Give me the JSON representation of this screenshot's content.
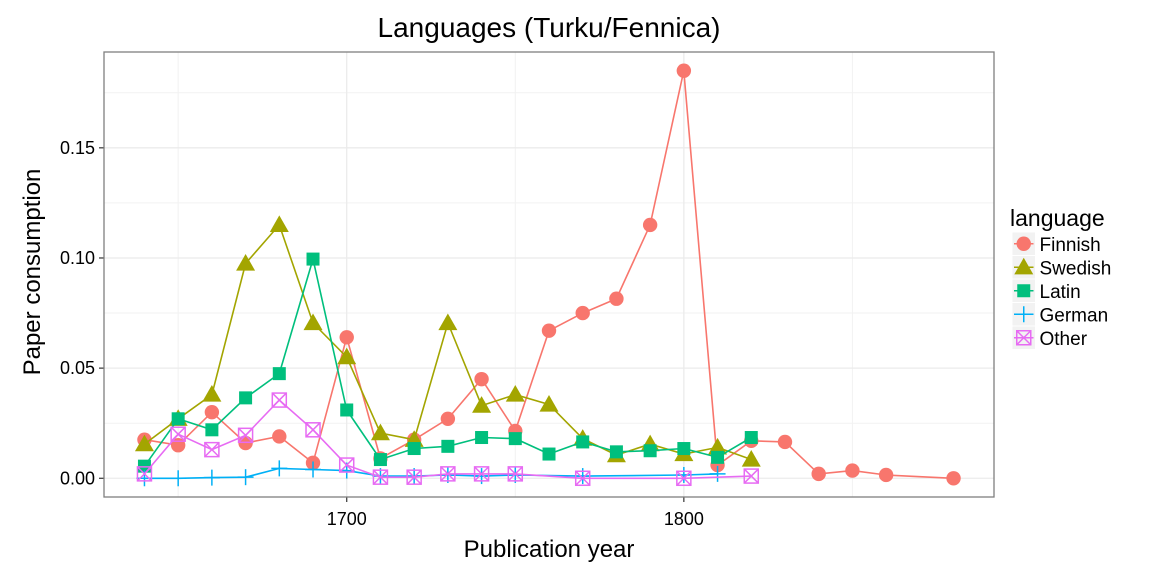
{
  "chart_data": {
    "type": "line",
    "title": "Languages (Turku/Fennica)",
    "xlabel": "Publication year",
    "ylabel": "Paper consumption",
    "xlim": [
      1628,
      1892
    ],
    "ylim": [
      -0.0085,
      0.1935
    ],
    "x_ticks": [
      1700,
      1800
    ],
    "y_ticks": [
      0.0,
      0.05,
      0.1,
      0.15
    ],
    "x_tick_labels": [
      "1700",
      "1800"
    ],
    "y_tick_labels": [
      "0.00",
      "0.05",
      "0.10",
      "0.15"
    ],
    "grid": true,
    "legend": {
      "title": "language",
      "position": "right"
    },
    "series": [
      {
        "name": "Finnish",
        "color": "#F8766D",
        "marker": "circle",
        "x": [
          1640,
          1650,
          1660,
          1670,
          1680,
          1690,
          1700,
          1710,
          1720,
          1730,
          1740,
          1750,
          1760,
          1770,
          1780,
          1790,
          1800,
          1810,
          1820,
          1830,
          1840,
          1850,
          1860,
          1880
        ],
        "values": [
          0.0175,
          0.015,
          0.03,
          0.016,
          0.019,
          0.007,
          0.064,
          0.009,
          0.0175,
          0.027,
          0.045,
          0.0215,
          0.067,
          0.075,
          0.0815,
          0.115,
          0.185,
          0.006,
          0.017,
          0.0165,
          0.002,
          0.0035,
          0.0015,
          0.0
        ]
      },
      {
        "name": "Swedish",
        "color": "#A3A500",
        "marker": "triangle",
        "x": [
          1640,
          1650,
          1660,
          1670,
          1680,
          1690,
          1700,
          1710,
          1720,
          1730,
          1740,
          1750,
          1760,
          1770,
          1780,
          1790,
          1800,
          1810,
          1820
        ],
        "values": [
          0.0155,
          0.027,
          0.038,
          0.0975,
          0.115,
          0.0705,
          0.055,
          0.0205,
          0.0175,
          0.0705,
          0.033,
          0.038,
          0.0335,
          0.018,
          0.0105,
          0.0155,
          0.011,
          0.014,
          0.0085
        ]
      },
      {
        "name": "Latin",
        "color": "#00BF7D",
        "marker": "square",
        "x": [
          1640,
          1650,
          1660,
          1670,
          1680,
          1690,
          1700,
          1710,
          1720,
          1730,
          1740,
          1750,
          1760,
          1770,
          1780,
          1790,
          1800,
          1810,
          1820
        ],
        "values": [
          0.0055,
          0.027,
          0.022,
          0.0365,
          0.0475,
          0.0995,
          0.031,
          0.0085,
          0.0135,
          0.0145,
          0.0185,
          0.018,
          0.011,
          0.0165,
          0.012,
          0.0125,
          0.0135,
          0.0095,
          0.0185
        ]
      },
      {
        "name": "German",
        "color": "#00B0F6",
        "marker": "plus",
        "x": [
          1640,
          1650,
          1660,
          1670,
          1680,
          1690,
          1700,
          1710,
          1720,
          1730,
          1740,
          1750,
          1770,
          1800,
          1810
        ],
        "values": [
          0.0,
          0.0,
          0.0003,
          0.0005,
          0.0045,
          0.004,
          0.0035,
          0.001,
          0.001,
          0.0015,
          0.001,
          0.0015,
          0.001,
          0.0015,
          0.002
        ]
      },
      {
        "name": "Other",
        "color": "#E76BF3",
        "marker": "boxx",
        "x": [
          1640,
          1650,
          1660,
          1670,
          1680,
          1690,
          1700,
          1710,
          1720,
          1730,
          1740,
          1750,
          1770,
          1800,
          1820
        ],
        "values": [
          0.002,
          0.02,
          0.013,
          0.0195,
          0.0355,
          0.022,
          0.006,
          0.0005,
          0.0005,
          0.002,
          0.002,
          0.002,
          0.0,
          0.0,
          0.001
        ]
      }
    ]
  }
}
